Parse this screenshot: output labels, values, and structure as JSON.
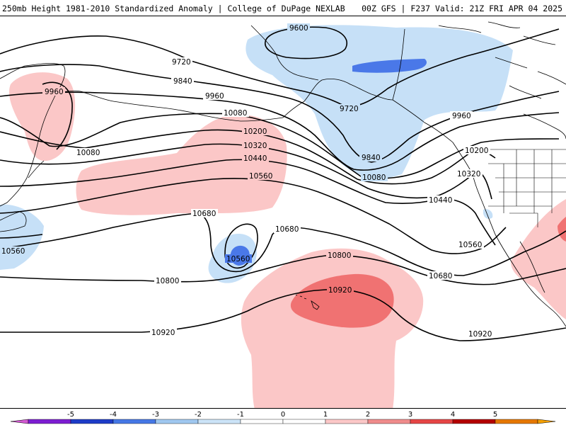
{
  "header": {
    "title_left": "250mb Height 1981-2010 Standardized Anomaly | College of DuPage NEXLAB",
    "title_right": "00Z GFS | F237 Valid: 21Z FRI APR 04 2025"
  },
  "contour_labels": [
    {
      "text": "9600"
    },
    {
      "text": "9720"
    },
    {
      "text": "9720"
    },
    {
      "text": "9840"
    },
    {
      "text": "9840"
    },
    {
      "text": "9960"
    },
    {
      "text": "9960"
    },
    {
      "text": "9960"
    },
    {
      "text": "10080"
    },
    {
      "text": "10080"
    },
    {
      "text": "10080"
    },
    {
      "text": "10200"
    },
    {
      "text": "10200"
    },
    {
      "text": "10320"
    },
    {
      "text": "10320"
    },
    {
      "text": "10440"
    },
    {
      "text": "10440"
    },
    {
      "text": "10560"
    },
    {
      "text": "10560"
    },
    {
      "text": "10560"
    },
    {
      "text": "10560"
    },
    {
      "text": "10680"
    },
    {
      "text": "10680"
    },
    {
      "text": "10680"
    },
    {
      "text": "10800"
    },
    {
      "text": "10800"
    },
    {
      "text": "10920"
    },
    {
      "text": "10920"
    },
    {
      "text": "10920"
    }
  ],
  "colorbar": {
    "ticks": [
      "-5",
      "-4",
      "-3",
      "-2",
      "-1",
      "0",
      "1",
      "2",
      "3",
      "4",
      "5"
    ],
    "colors": [
      "#d25ad2",
      "#7d1ed2",
      "#1e3cc8",
      "#4678e6",
      "#a0c8f0",
      "#cce4f8",
      "#ffffff",
      "#ffffff",
      "#fcc8c8",
      "#f08c8c",
      "#e64646",
      "#b40000",
      "#e67800",
      "#f5a000"
    ]
  },
  "colors": {
    "neg1": "#c6e0f7",
    "neg2": "#4a78e8",
    "pos1": "#fbc7c7",
    "pos2": "#f07272",
    "coast": "#000000"
  }
}
